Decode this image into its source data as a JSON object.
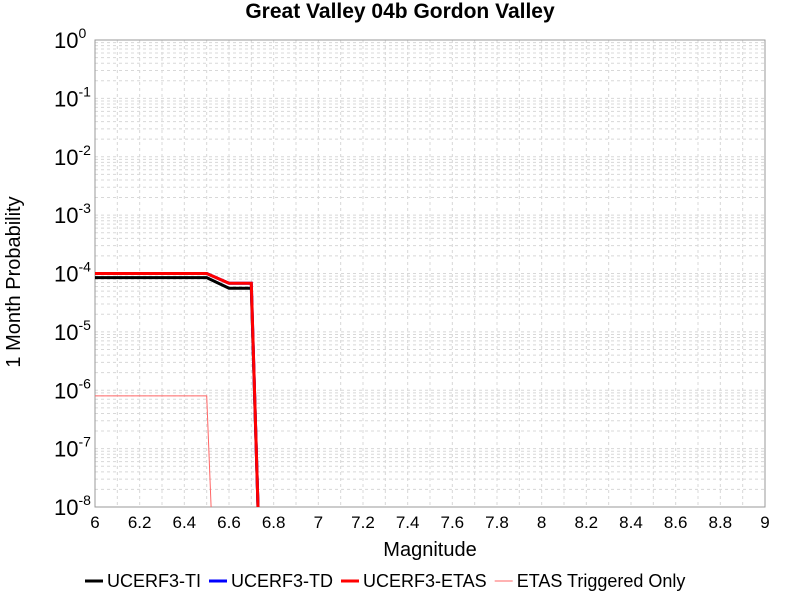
{
  "chart_data": {
    "type": "line",
    "title": "Great Valley 04b Gordon Valley",
    "xlabel": "Magnitude",
    "ylabel": "1 Month Probability",
    "xlim": [
      6,
      9
    ],
    "ylim": [
      1e-08,
      1
    ],
    "yscale": "log",
    "grid": true,
    "legend_position": "bottom",
    "x_ticks": [
      "6",
      "6.2",
      "6.4",
      "6.6",
      "6.8",
      "7",
      "7.2",
      "7.4",
      "7.6",
      "7.8",
      "8",
      "8.2",
      "8.4",
      "8.6",
      "8.8",
      "9"
    ],
    "y_ticks": [
      {
        "base": "10",
        "exp": "0"
      },
      {
        "base": "10",
        "exp": "-1"
      },
      {
        "base": "10",
        "exp": "-2"
      },
      {
        "base": "10",
        "exp": "-3"
      },
      {
        "base": "10",
        "exp": "-4"
      },
      {
        "base": "10",
        "exp": "-5"
      },
      {
        "base": "10",
        "exp": "-6"
      },
      {
        "base": "10",
        "exp": "-7"
      },
      {
        "base": "10",
        "exp": "-8"
      }
    ],
    "series": [
      {
        "name": "UCERF3-TI",
        "color": "#000000",
        "width": 3,
        "x": [
          6.0,
          6.5,
          6.6,
          6.7,
          6.73
        ],
        "y": [
          8.5e-05,
          8.5e-05,
          5.6e-05,
          5.6e-05,
          1e-08
        ]
      },
      {
        "name": "UCERF3-TD",
        "color": "#0000ff",
        "width": 3,
        "x": [
          6.0,
          6.5,
          6.6,
          6.7,
          6.73
        ],
        "y": [
          0.0001,
          0.0001,
          6.8e-05,
          6.8e-05,
          1e-08
        ]
      },
      {
        "name": "UCERF3-ETAS",
        "color": "#ff0000",
        "width": 3,
        "x": [
          6.0,
          6.5,
          6.6,
          6.7,
          6.73
        ],
        "y": [
          0.0001,
          0.0001,
          6.8e-05,
          6.8e-05,
          1e-08
        ]
      },
      {
        "name": "ETAS Triggered Only",
        "color": "#ff6666",
        "width": 1,
        "x": [
          6.0,
          6.5,
          6.52
        ],
        "y": [
          8e-07,
          8e-07,
          1e-08
        ]
      }
    ]
  }
}
